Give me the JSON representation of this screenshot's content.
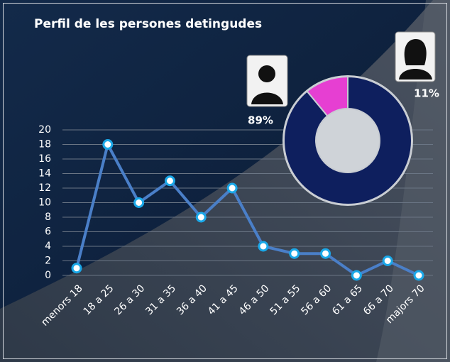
{
  "chart_data": [
    {
      "type": "line",
      "title": "Perfil de les persones detingudes",
      "categories": [
        "menors 18",
        "18 a 25",
        "26 a 30",
        "31 a 35",
        "36 a 40",
        "41 a 45",
        "46 a 50",
        "51 a 55",
        "56 a 60",
        "61 a 65",
        "66 a 70",
        "majors 70"
      ],
      "values": [
        1,
        18,
        10,
        13,
        8,
        12,
        4,
        3,
        3,
        0,
        2,
        0
      ],
      "color": "#4a7fc8",
      "ylim": [
        0,
        20
      ],
      "yticks": [
        0,
        2,
        4,
        6,
        8,
        10,
        12,
        14,
        16,
        18,
        20
      ],
      "grid": true
    },
    {
      "type": "pie",
      "values": [
        89,
        11
      ],
      "value_labels": [
        "89%",
        "11%"
      ],
      "colors": [
        "#0e1f5e",
        "#e63fd2"
      ]
    }
  ]
}
